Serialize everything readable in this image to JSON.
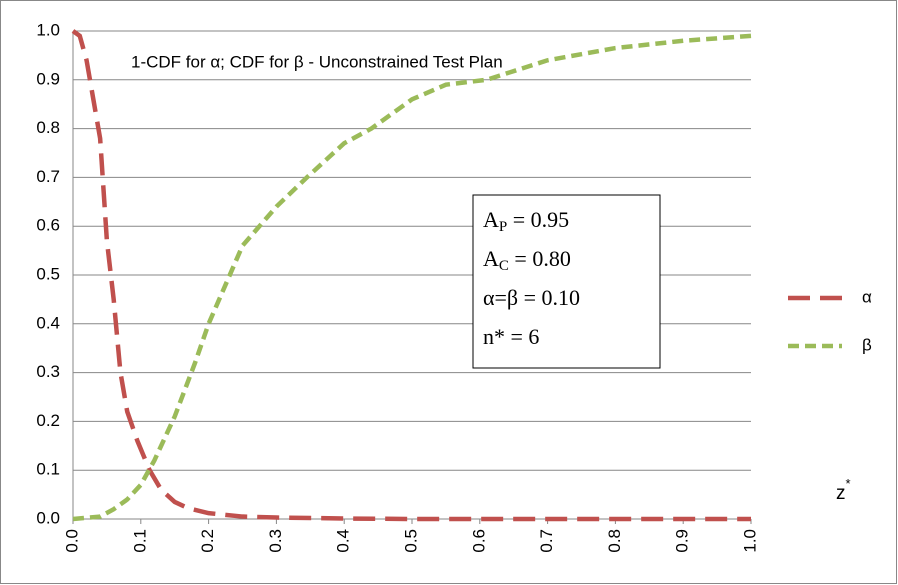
{
  "chart_data": {
    "type": "line",
    "annotation": "1-CDF for α; CDF for β - Unconstrained Test Plan",
    "box_lines": [
      {
        "main": "A",
        "sub": "P",
        "rest": " = 0.95"
      },
      {
        "main": "A",
        "sub": "C",
        "rest": " = 0.80"
      },
      {
        "main": "α=β = 0.10"
      },
      {
        "main": "n* = 6"
      }
    ],
    "x_label": {
      "main": "z",
      "sup": "*"
    },
    "series": [
      {
        "name": "α",
        "color": "#c0504d",
        "x": [
          0,
          0.01,
          0.02,
          0.03,
          0.04,
          0.05,
          0.06,
          0.07,
          0.08,
          0.095,
          0.113,
          0.13,
          0.15,
          0.17,
          0.2,
          0.25,
          0.3,
          0.4,
          0.5,
          0.6,
          0.7,
          0.8,
          0.9,
          1.0
        ],
        "values": [
          1.0,
          0.99,
          0.94,
          0.86,
          0.78,
          0.57,
          0.45,
          0.3,
          0.22,
          0.16,
          0.1,
          0.06,
          0.035,
          0.022,
          0.012,
          0.005,
          0.003,
          0.001,
          0,
          0,
          0,
          0,
          0,
          0
        ]
      },
      {
        "name": "β",
        "color": "#9bbb59",
        "x": [
          0,
          0.04,
          0.06,
          0.08,
          0.1,
          0.12,
          0.15,
          0.18,
          0.2,
          0.25,
          0.3,
          0.345,
          0.4,
          0.44,
          0.5,
          0.55,
          0.61,
          0.7,
          0.8,
          0.9,
          1.0
        ],
        "values": [
          0,
          0.005,
          0.02,
          0.04,
          0.07,
          0.12,
          0.21,
          0.32,
          0.4,
          0.56,
          0.64,
          0.7,
          0.77,
          0.8,
          0.86,
          0.89,
          0.9,
          0.94,
          0.965,
          0.98,
          0.99
        ]
      }
    ],
    "xlim": [
      0,
      1.0
    ],
    "xticks": [
      {
        "value": 0,
        "label": "0.0"
      },
      0.1,
      0.2,
      0.3,
      0.4,
      0.5,
      0.6,
      0.7,
      0.8,
      0.9,
      {
        "value": 1,
        "label": "1.0"
      }
    ],
    "ylim": [
      0,
      1.0
    ],
    "yticks": [
      {
        "value": 0,
        "label": "0.0"
      },
      0.1,
      0.2,
      0.3,
      0.4,
      0.5,
      0.6,
      0.7,
      0.8,
      0.9,
      {
        "value": 1,
        "label": "1.0"
      }
    ],
    "grid": true
  }
}
